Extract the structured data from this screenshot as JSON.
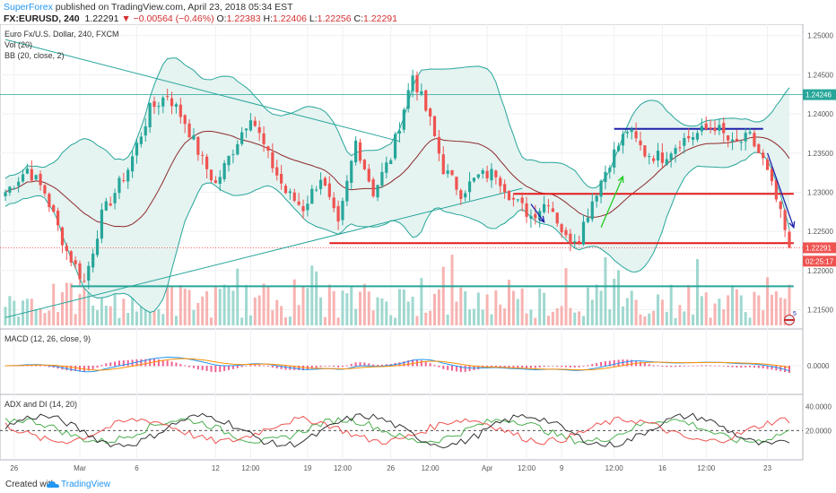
{
  "header": {
    "publisher": "SuperForex",
    "published_text": " published on TradingView.com, April 23, 2018 05:34 EST",
    "symbol": "FX:EURUSD, 240",
    "last": "1.22291",
    "change": "−0.00564 (−0.46%)",
    "o_label": "O:",
    "o": "1.22383",
    "h_label": "H:",
    "h": "1.22406",
    "l_label": "L:",
    "l": "1.22256",
    "c_label": "C:",
    "c": "1.22291"
  },
  "legend": {
    "main": "Euro Fx/U.S. Dollar, 240, FXCM",
    "vol": "Vol (20)",
    "bb": "BB (20, close, 2)",
    "macd": "MACD (12, 26, close, 9)",
    "adx": "ADX and DI (14, 20)"
  },
  "footer": {
    "created": "Created with",
    "brand": "TradingView"
  },
  "colors": {
    "up": "#26a69a",
    "down": "#ef5350",
    "bb": "#26a69a",
    "bb_fill": "#e5f3f1",
    "blue": "#1e22aa",
    "red": "#e21b1b"
  },
  "chart_data": [
    {
      "type": "candlestick",
      "title": "Euro Fx/U.S. Dollar, 240, FXCM",
      "ylim": [
        1.213,
        1.251
      ],
      "y_ticks": [
        "1.25000",
        "1.24500",
        "1.24000",
        "1.23500",
        "1.23000",
        "1.22500",
        "1.22000",
        "1.21500"
      ],
      "y_tick_values": [
        1.25,
        1.245,
        1.24,
        1.235,
        1.23,
        1.225,
        1.22,
        1.215
      ],
      "x_ticks": [
        "26",
        "Mar",
        "6",
        "12",
        "12:00",
        "19",
        "12:00",
        "26",
        "12:00",
        "Apr",
        "12:00",
        "9",
        "12:00",
        "16",
        "12:00",
        "23"
      ],
      "price_labels": [
        {
          "text": "1.24246",
          "value": 1.24246,
          "color": "#26a69a"
        },
        {
          "text": "1.22291",
          "value": 1.22291,
          "color": "#ef5350"
        },
        {
          "text": "02:25:17",
          "value": 1.2212,
          "color": "#ef5350"
        }
      ],
      "key_points": [
        {
          "x": 0,
          "y": 1.23
        },
        {
          "x": 5,
          "y": 1.233
        },
        {
          "x": 9,
          "y": 1.23
        },
        {
          "x": 14,
          "y": 1.2225
        },
        {
          "x": 18,
          "y": 1.2185
        },
        {
          "x": 22,
          "y": 1.227
        },
        {
          "x": 28,
          "y": 1.233
        },
        {
          "x": 33,
          "y": 1.2405
        },
        {
          "x": 37,
          "y": 1.2425
        },
        {
          "x": 41,
          "y": 1.239
        },
        {
          "x": 45,
          "y": 1.234
        },
        {
          "x": 48,
          "y": 1.231
        },
        {
          "x": 52,
          "y": 1.2355
        },
        {
          "x": 56,
          "y": 1.24
        },
        {
          "x": 60,
          "y": 1.2345
        },
        {
          "x": 64,
          "y": 1.23
        },
        {
          "x": 68,
          "y": 1.228
        },
        {
          "x": 72,
          "y": 1.232
        },
        {
          "x": 76,
          "y": 1.2255
        },
        {
          "x": 80,
          "y": 1.2365
        },
        {
          "x": 84,
          "y": 1.23
        },
        {
          "x": 88,
          "y": 1.2345
        },
        {
          "x": 93,
          "y": 1.245
        },
        {
          "x": 97,
          "y": 1.239
        },
        {
          "x": 100,
          "y": 1.233
        },
        {
          "x": 104,
          "y": 1.23
        },
        {
          "x": 108,
          "y": 1.232
        },
        {
          "x": 112,
          "y": 1.2325
        },
        {
          "x": 116,
          "y": 1.229
        },
        {
          "x": 120,
          "y": 1.227
        },
        {
          "x": 124,
          "y": 1.229
        },
        {
          "x": 128,
          "y": 1.224
        },
        {
          "x": 131,
          "y": 1.2245
        },
        {
          "x": 134,
          "y": 1.229
        },
        {
          "x": 138,
          "y": 1.234
        },
        {
          "x": 142,
          "y": 1.238
        },
        {
          "x": 146,
          "y": 1.235
        },
        {
          "x": 150,
          "y": 1.2345
        },
        {
          "x": 154,
          "y": 1.2365
        },
        {
          "x": 158,
          "y": 1.2375
        },
        {
          "x": 162,
          "y": 1.2385
        },
        {
          "x": 166,
          "y": 1.236
        },
        {
          "x": 170,
          "y": 1.237
        },
        {
          "x": 173,
          "y": 1.234
        },
        {
          "x": 176,
          "y": 1.229
        },
        {
          "x": 179,
          "y": 1.2229
        }
      ],
      "candle_count": 180,
      "horizontal_lines": [
        {
          "y": 1.24246,
          "color": "#26a69a",
          "style": "thin"
        },
        {
          "y": 1.2298,
          "x1": 116,
          "x2": 180,
          "color": "#e21b1b"
        },
        {
          "y": 1.2235,
          "x1": 74,
          "x2": 180,
          "color": "#e21b1b"
        },
        {
          "y": 1.218,
          "x1": 15,
          "x2": 180,
          "color": "#26a69a"
        },
        {
          "y": 1.2381,
          "x1": 139,
          "x2": 173,
          "color": "#1e22aa"
        }
      ],
      "trend_lines": [
        {
          "x1": 0,
          "y1": 1.2495,
          "x2": 90,
          "y2": 1.2365,
          "color": "#26a69a"
        },
        {
          "x1": 0,
          "y1": 1.214,
          "x2": 118,
          "y2": 1.2305,
          "color": "#26a69a"
        }
      ],
      "arrows": [
        {
          "x1": 136,
          "y1": 1.2255,
          "x2": 141,
          "y2": 1.232,
          "color": "#22cc22"
        },
        {
          "x1": 120,
          "y1": 1.2285,
          "x2": 123,
          "y2": 1.2262,
          "color": "#1e22aa"
        },
        {
          "x1": 174,
          "y1": 1.235,
          "x2": 180,
          "y2": 1.2255,
          "color": "#1e22aa"
        }
      ]
    },
    {
      "type": "bar",
      "title": "Vol (20)",
      "colors": {
        "up": "#9fd8cf",
        "down": "#f7b3b1"
      }
    },
    {
      "type": "line",
      "title": "MACD (12, 26, close, 9)",
      "y_ticks": [
        "0.0000"
      ],
      "series": [
        {
          "name": "MACD",
          "color": "#2196f3"
        },
        {
          "name": "Signal",
          "color": "#ff8f00"
        },
        {
          "name": "Histogram",
          "color": "#e91e63"
        }
      ]
    },
    {
      "type": "line",
      "title": "ADX and DI (14, 20)",
      "y_ticks": [
        "40.0000",
        "20.0000"
      ],
      "y_tick_values": [
        40,
        20
      ],
      "series": [
        {
          "name": "+DI",
          "color": "#4caf50"
        },
        {
          "name": "−DI",
          "color": "#ef5350"
        },
        {
          "name": "ADX",
          "color": "#333333"
        }
      ]
    }
  ]
}
